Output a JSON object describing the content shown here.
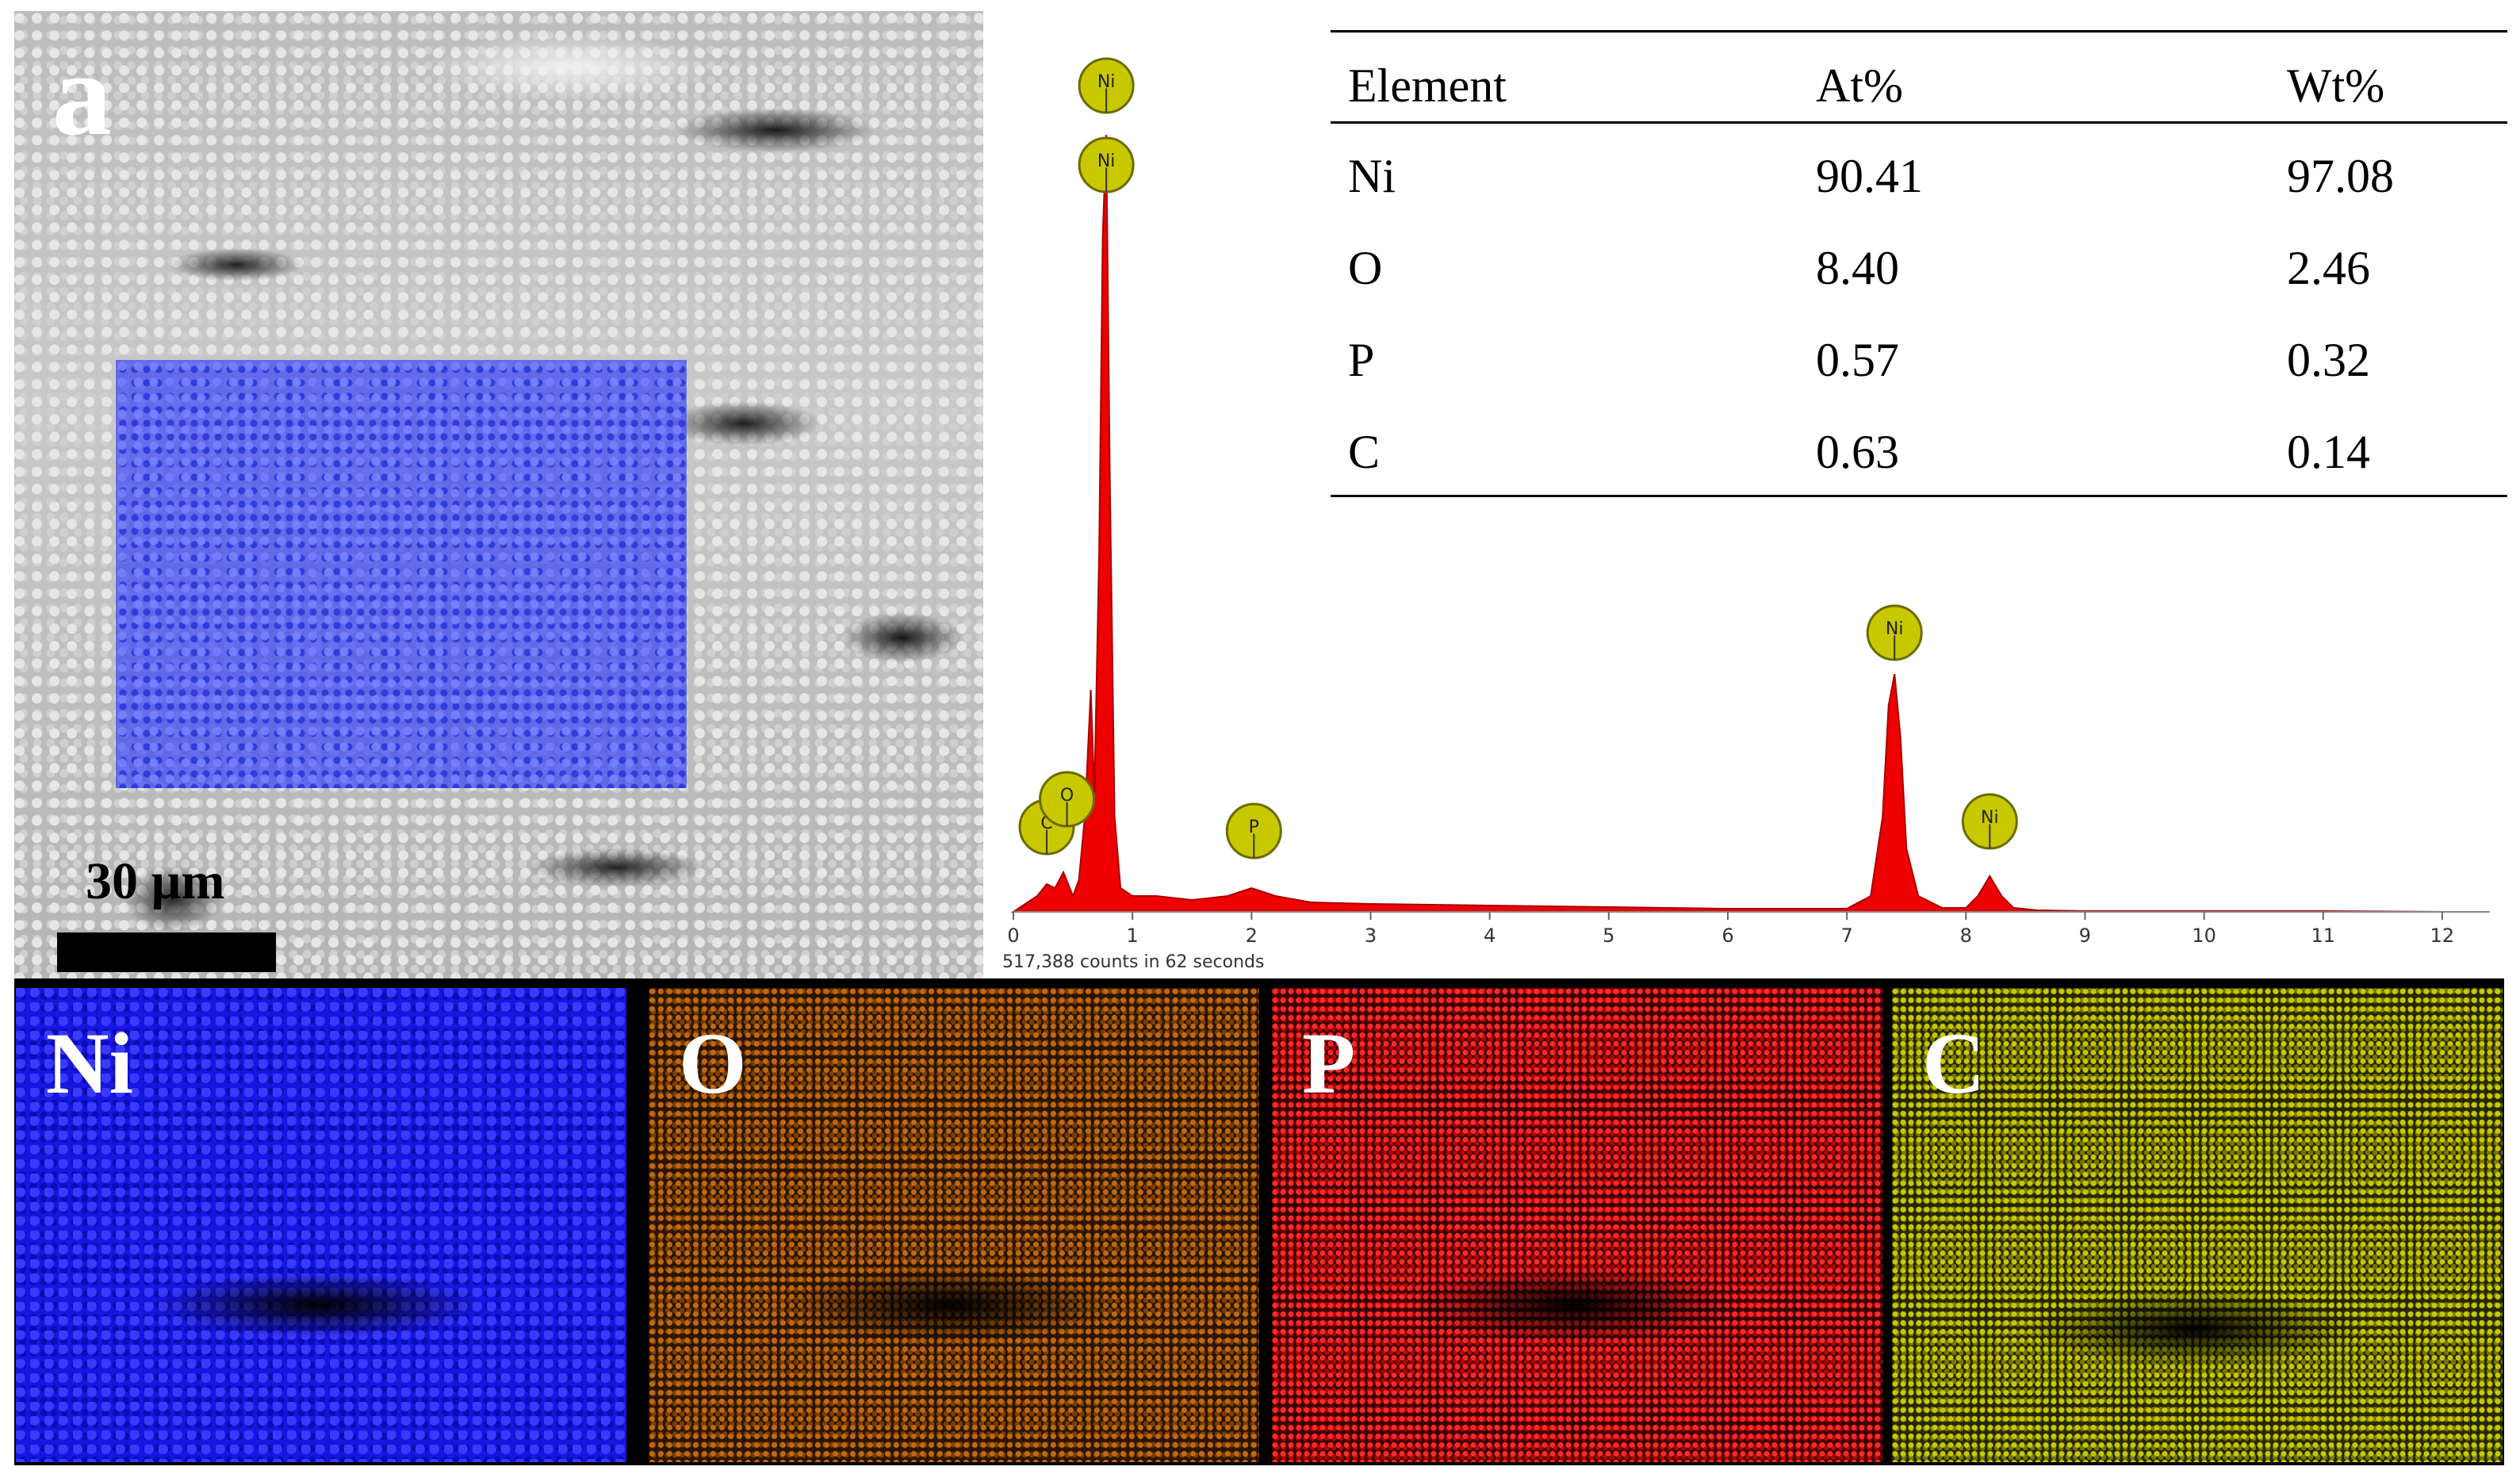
{
  "figure": {
    "panel_letter": "a",
    "scale_bar_label": "30 µm"
  },
  "spectrum": {
    "counts_label": "517,388 counts in 62 seconds",
    "x_ticks": [
      "0",
      "1",
      "2",
      "3",
      "4",
      "5",
      "6",
      "7",
      "8",
      "9",
      "10",
      "11",
      "12"
    ],
    "peak_labels": [
      {
        "element": "Ni",
        "energy_kev": 0.78,
        "level": 1.0
      },
      {
        "element": "Ni",
        "energy_kev": 0.78,
        "level": 0.9
      },
      {
        "element": "C",
        "energy_kev": 0.28,
        "level": 0.065
      },
      {
        "element": "O",
        "energy_kev": 0.45,
        "level": 0.1
      },
      {
        "element": "P",
        "energy_kev": 2.02,
        "level": 0.06
      },
      {
        "element": "Ni",
        "energy_kev": 7.4,
        "level": 0.31
      },
      {
        "element": "Ni",
        "energy_kev": 8.2,
        "level": 0.072
      }
    ],
    "label_color": "#c8c800",
    "fill_color": "#ee0000"
  },
  "chart_data": {
    "type": "area",
    "title": "",
    "xlabel": "",
    "ylabel": "",
    "xlim": [
      0,
      12.4
    ],
    "ylim": [
      0,
      1.05
    ],
    "x": [
      0,
      0.1,
      0.2,
      0.28,
      0.35,
      0.42,
      0.5,
      0.55,
      0.6,
      0.65,
      0.68,
      0.72,
      0.75,
      0.78,
      0.81,
      0.85,
      0.9,
      1.0,
      1.2,
      1.5,
      1.8,
      2.0,
      2.1,
      2.2,
      2.5,
      3,
      4,
      5,
      6,
      7,
      7.2,
      7.3,
      7.35,
      7.4,
      7.45,
      7.5,
      7.6,
      7.8,
      8.0,
      8.1,
      8.2,
      8.3,
      8.4,
      8.6,
      9,
      10,
      11,
      12,
      12.4
    ],
    "series": [
      {
        "values": [
          0,
          0.01,
          0.02,
          0.035,
          0.03,
          0.05,
          0.02,
          0.04,
          0.12,
          0.28,
          0.15,
          0.45,
          0.85,
          0.98,
          0.55,
          0.12,
          0.03,
          0.02,
          0.02,
          0.015,
          0.02,
          0.03,
          0.025,
          0.02,
          0.012,
          0.01,
          0.008,
          0.006,
          0.004,
          0.004,
          0.02,
          0.12,
          0.26,
          0.3,
          0.22,
          0.08,
          0.02,
          0.005,
          0.005,
          0.02,
          0.045,
          0.02,
          0.005,
          0.002,
          0.001,
          0.001,
          0.001,
          0.0,
          0.0
        ]
      }
    ]
  },
  "composition_table": {
    "columns": [
      "Element",
      "At%",
      "Wt%"
    ],
    "rows": [
      {
        "element": "Ni",
        "at": "90.41",
        "wt": "97.08"
      },
      {
        "element": "O",
        "at": "8.40",
        "wt": "2.46"
      },
      {
        "element": "P",
        "at": "0.57",
        "wt": "0.32"
      },
      {
        "element": "C",
        "at": "0.63",
        "wt": "0.14"
      }
    ]
  },
  "maps": [
    {
      "label": "Ni",
      "color": "#1616e0"
    },
    {
      "label": "O",
      "color": "#c26a10"
    },
    {
      "label": "P",
      "color": "#ff2a2a"
    },
    {
      "label": "C",
      "color": "#c8c800"
    }
  ]
}
